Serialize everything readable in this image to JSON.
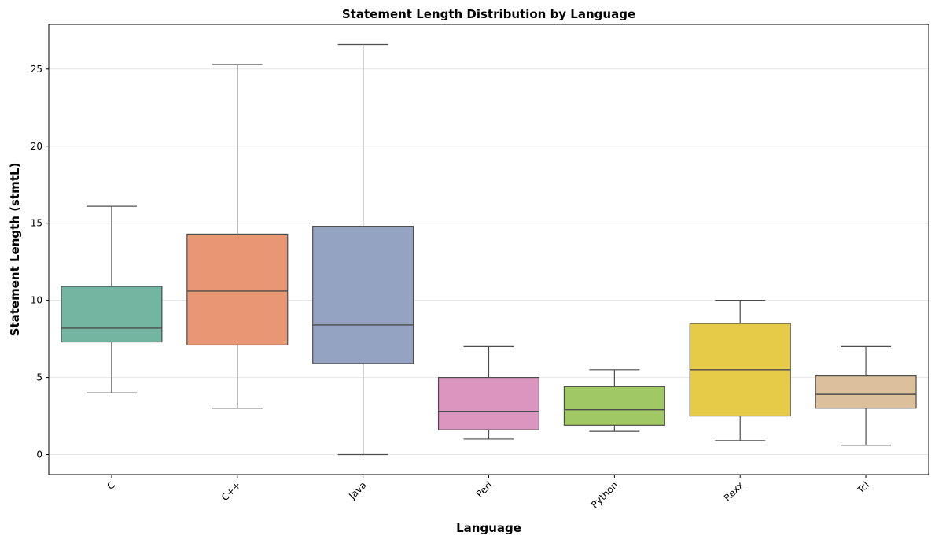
{
  "chart_data": {
    "type": "box",
    "title": "Statement Length Distribution by Language",
    "xlabel": "Language",
    "ylabel": "Statement Length (stmtL)",
    "ylim": [
      -1.3,
      27.9
    ],
    "yticks": [
      0,
      5,
      10,
      15,
      20,
      25
    ],
    "grid": "horizontal",
    "categories": [
      "C",
      "C++",
      "Java",
      "Perl",
      "Python",
      "Rexx",
      "Tcl"
    ],
    "boxes": [
      {
        "category": "C",
        "whisker_low": 4.0,
        "q1": 7.3,
        "median": 8.2,
        "q3": 10.9,
        "whisker_high": 16.1,
        "color": "#72b6a1"
      },
      {
        "category": "C++",
        "whisker_low": 3.0,
        "q1": 7.1,
        "median": 10.6,
        "q3": 14.3,
        "whisker_high": 25.3,
        "color": "#e99675"
      },
      {
        "category": "Java",
        "whisker_low": 0.0,
        "q1": 5.9,
        "median": 8.4,
        "q3": 14.8,
        "whisker_high": 26.6,
        "color": "#95a3c3"
      },
      {
        "category": "Perl",
        "whisker_low": 1.0,
        "q1": 1.6,
        "median": 2.8,
        "q3": 5.0,
        "whisker_high": 7.0,
        "color": "#db96c0"
      },
      {
        "category": "Python",
        "whisker_low": 1.5,
        "q1": 1.9,
        "median": 2.9,
        "q3": 4.4,
        "whisker_high": 5.5,
        "color": "#a0c864"
      },
      {
        "category": "Rexx",
        "whisker_low": 0.9,
        "q1": 2.5,
        "median": 5.5,
        "q3": 8.5,
        "whisker_high": 10.0,
        "color": "#e5cb48"
      },
      {
        "category": "Tcl",
        "whisker_low": 0.6,
        "q1": 3.0,
        "median": 3.9,
        "q3": 5.1,
        "whisker_high": 7.0,
        "color": "#dbc09b"
      }
    ]
  }
}
